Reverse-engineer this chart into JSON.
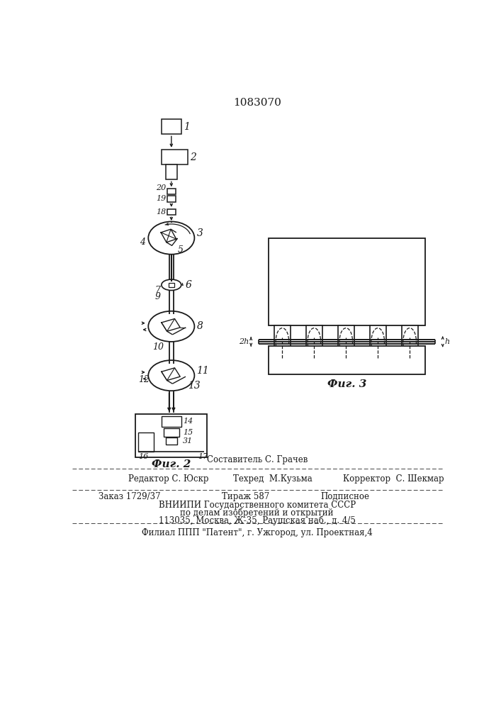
{
  "title": "1083070",
  "fig2_label": "Фиг. 2",
  "fig3_label": "Фиг. 3",
  "bg_color": "#ffffff",
  "line_color": "#1a1a1a",
  "footer_line0": "Составитель С. Грачев",
  "footer_line1a": "Редактор С. Юскр",
  "footer_line1b": "Техред  М.Кузьма",
  "footer_line1c": "Корректор  С. Шекмар",
  "footer_line2a": "Заказ 1729/37",
  "footer_line2b": "Тираж 587",
  "footer_line2c": "Подписное",
  "footer_line3": "ВНИИПИ Государственного комитета СССР",
  "footer_line4": "по делам изобретений и открытий",
  "footer_line5": "113035, Москва, Ж-35, Раушская наб., д. 4/5",
  "footer_line6": "Филиал ППП \"Патент\", г. Ужгород, ул. Проектная,4"
}
